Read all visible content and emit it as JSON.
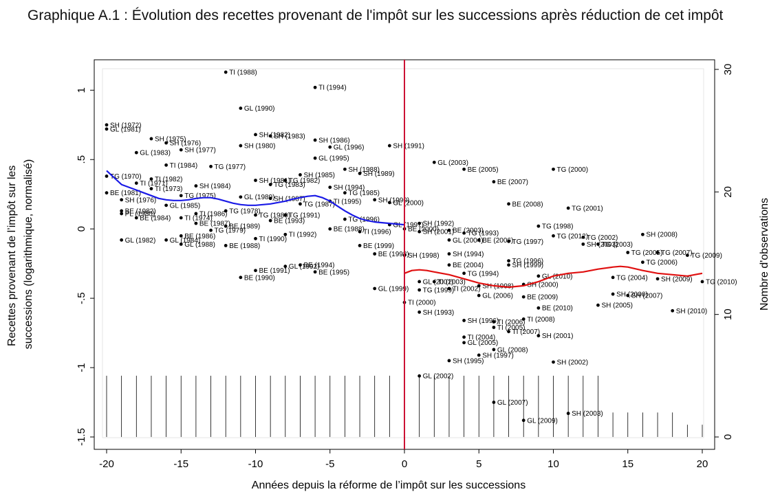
{
  "title": "Graphique A.1 : Évolution des recettes provenant de l'impôt sur les successions après réduction de cet impôt",
  "chart_data": {
    "type": "scatter",
    "xlabel": "Années depuis la réforme de l’impôt sur les successions",
    "ylabel": "Recettes provenant de l’impôt sur les successions (logarithmique, normalisé)",
    "ylabel_lines": [
      "Recettes provenant de l’impôt sur les",
      "successions (logarithmique, normalisé)"
    ],
    "y2label": "Nombre d'observations",
    "xlim": [
      -20,
      20
    ],
    "ylim": [
      -1.5,
      1.15
    ],
    "y2lim": [
      0,
      30
    ],
    "xticks": [
      -20,
      -15,
      -10,
      -5,
      0,
      5,
      10,
      15,
      20
    ],
    "xtick_labels": [
      "-20",
      "-15",
      "-10",
      "-5",
      "0",
      "5",
      "10",
      "15",
      "20"
    ],
    "yticks": [
      -1.5,
      -1,
      -0.5,
      0,
      0.5,
      1
    ],
    "ytick_labels": [
      "-1.5",
      "-1",
      "-.5",
      "0",
      ".5",
      "1"
    ],
    "y2ticks": [
      0,
      10,
      20,
      30
    ],
    "y2tick_labels": [
      "0",
      "10",
      "20",
      "30"
    ],
    "reform_line_x": 0,
    "reform_line_color": "#cc1133",
    "points": [
      {
        "x": -12,
        "y": 1.13,
        "label": "TI (1988)"
      },
      {
        "x": -6,
        "y": 1.02,
        "label": "TI (1994)"
      },
      {
        "x": -11,
        "y": 0.87,
        "label": "GL (1990)"
      },
      {
        "x": -20,
        "y": 0.75,
        "label": "SH (1972)"
      },
      {
        "x": -20,
        "y": 0.72,
        "label": "GL (1981)"
      },
      {
        "x": -17,
        "y": 0.65,
        "label": "SH (1975)"
      },
      {
        "x": -16,
        "y": 0.62,
        "label": "SH (1976)"
      },
      {
        "x": -10,
        "y": 0.68,
        "label": "SH (1982)"
      },
      {
        "x": -9,
        "y": 0.67,
        "label": "SH (1983)"
      },
      {
        "x": -6,
        "y": 0.64,
        "label": "SH (1986)"
      },
      {
        "x": -11,
        "y": 0.6,
        "label": "SH (1980)"
      },
      {
        "x": -5,
        "y": 0.59,
        "label": "GL (1996)"
      },
      {
        "x": -1,
        "y": 0.6,
        "label": "SH (1991)"
      },
      {
        "x": -15,
        "y": 0.57,
        "label": "SH (1977)"
      },
      {
        "x": -18,
        "y": 0.55,
        "label": "GL (1983)"
      },
      {
        "x": -6,
        "y": 0.51,
        "label": "GL (1995)"
      },
      {
        "x": 2,
        "y": 0.48,
        "label": "GL (2003)"
      },
      {
        "x": -16,
        "y": 0.46,
        "label": "TI (1984)"
      },
      {
        "x": -13,
        "y": 0.45,
        "label": "TG (1977)"
      },
      {
        "x": 4,
        "y": 0.43,
        "label": "BE (2005)"
      },
      {
        "x": 10,
        "y": 0.43,
        "label": "TG (2000)"
      },
      {
        "x": -4,
        "y": 0.43,
        "label": "SH (1988)"
      },
      {
        "x": -3,
        "y": 0.4,
        "label": "SH (1989)"
      },
      {
        "x": -20,
        "y": 0.38,
        "label": "TG (1970)"
      },
      {
        "x": -7,
        "y": 0.39,
        "label": "SH (1985)"
      },
      {
        "x": -17,
        "y": 0.36,
        "label": "TI (1982)"
      },
      {
        "x": -10,
        "y": 0.35,
        "label": "SH (1981)"
      },
      {
        "x": -8,
        "y": 0.35,
        "label": "TG (1982)"
      },
      {
        "x": 6,
        "y": 0.34,
        "label": "BE (2007)"
      },
      {
        "x": -18,
        "y": 0.33,
        "label": "TI (1971)"
      },
      {
        "x": -14,
        "y": 0.31,
        "label": "SH (1984)"
      },
      {
        "x": -9,
        "y": 0.32,
        "label": "TG (1983)"
      },
      {
        "x": -17,
        "y": 0.29,
        "label": "TI (1973)"
      },
      {
        "x": -5,
        "y": 0.3,
        "label": "SH (1994)"
      },
      {
        "x": -20,
        "y": 0.26,
        "label": "BE (1981)"
      },
      {
        "x": -4,
        "y": 0.26,
        "label": "TG (1985)"
      },
      {
        "x": -15,
        "y": 0.24,
        "label": "TG (1975)"
      },
      {
        "x": -11,
        "y": 0.23,
        "label": "GL (1989)"
      },
      {
        "x": -9,
        "y": 0.22,
        "label": "SH (1987)"
      },
      {
        "x": -19,
        "y": 0.21,
        "label": "SH (1976)"
      },
      {
        "x": -2,
        "y": 0.21,
        "label": "SH (1990)"
      },
      {
        "x": -1,
        "y": 0.19,
        "label": "GL (2000)"
      },
      {
        "x": 7,
        "y": 0.18,
        "label": "BE (2008)"
      },
      {
        "x": -7,
        "y": 0.18,
        "label": "TG (1987)"
      },
      {
        "x": -5,
        "y": 0.2,
        "label": "TI (1995)"
      },
      {
        "x": -16,
        "y": 0.17,
        "label": "GL (1985)"
      },
      {
        "x": 11,
        "y": 0.15,
        "label": "TG (2001)"
      },
      {
        "x": -12,
        "y": 0.13,
        "label": "TG (1978)"
      },
      {
        "x": -19,
        "y": 0.13,
        "label": "BE (1982)"
      },
      {
        "x": -14,
        "y": 0.11,
        "label": "TI (1986)"
      },
      {
        "x": -19,
        "y": 0.11,
        "label": "PL (1980)"
      },
      {
        "x": -10,
        "y": 0.1,
        "label": "TG (1980)"
      },
      {
        "x": -8,
        "y": 0.1,
        "label": "TG (1991)"
      },
      {
        "x": -18,
        "y": 0.08,
        "label": "BE (1984)"
      },
      {
        "x": -15,
        "y": 0.08,
        "label": "TI (1974)"
      },
      {
        "x": -4,
        "y": 0.07,
        "label": "TG (1996)"
      },
      {
        "x": -9,
        "y": 0.06,
        "label": "BE (1993)"
      },
      {
        "x": -14,
        "y": 0.04,
        "label": "BE (1987)"
      },
      {
        "x": 1,
        "y": 0.04,
        "label": "SH (1992)"
      },
      {
        "x": -12,
        "y": 0.02,
        "label": "BE (1989)"
      },
      {
        "x": -1,
        "y": 0.03,
        "label": "GL (1997)"
      },
      {
        "x": 9,
        "y": 0.02,
        "label": "TG (1998)"
      },
      {
        "x": -13,
        "y": -0.01,
        "label": "TG (1979)"
      },
      {
        "x": 0,
        "y": 0.0,
        "label": "BE (2000)"
      },
      {
        "x": -5,
        "y": 0.0,
        "label": "BE (1988)"
      },
      {
        "x": 3,
        "y": -0.01,
        "label": "BE (2003)"
      },
      {
        "x": -3,
        "y": -0.02,
        "label": "TI (1996)"
      },
      {
        "x": 4,
        "y": -0.03,
        "label": "TG (1993)"
      },
      {
        "x": 1,
        "y": -0.02,
        "label": "SH (2001)"
      },
      {
        "x": -8,
        "y": -0.04,
        "label": "TI (1992)"
      },
      {
        "x": -15,
        "y": -0.05,
        "label": "BE (1986)"
      },
      {
        "x": 10,
        "y": -0.05,
        "label": "TG (2012)"
      },
      {
        "x": 12,
        "y": -0.06,
        "label": "TG (2002)"
      },
      {
        "x": 16,
        "y": -0.04,
        "label": "SH (2008)"
      },
      {
        "x": -10,
        "y": -0.07,
        "label": "TI (1990)"
      },
      {
        "x": -19,
        "y": -0.08,
        "label": "GL (1982)"
      },
      {
        "x": -16,
        "y": -0.08,
        "label": "GL (1984)"
      },
      {
        "x": 3,
        "y": -0.08,
        "label": "GL (2004)"
      },
      {
        "x": 5,
        "y": -0.08,
        "label": "BE (2006)"
      },
      {
        "x": 7,
        "y": -0.09,
        "label": "TG (1997)"
      },
      {
        "x": -15,
        "y": -0.11,
        "label": "GL (1988)"
      },
      {
        "x": -12,
        "y": -0.12,
        "label": "BE (1988)"
      },
      {
        "x": -3,
        "y": -0.12,
        "label": "BE (1999)"
      },
      {
        "x": 12,
        "y": -0.11,
        "label": "SH (2003)"
      },
      {
        "x": 13,
        "y": -0.11,
        "label": "TG (2003)"
      },
      {
        "x": -2,
        "y": -0.18,
        "label": "BE (1998)"
      },
      {
        "x": 0,
        "y": -0.19,
        "label": "SH (1998)"
      },
      {
        "x": 3,
        "y": -0.18,
        "label": "SH (1994)"
      },
      {
        "x": 15,
        "y": -0.17,
        "label": "TG (2005)"
      },
      {
        "x": 17,
        "y": -0.17,
        "label": "TG (2007)"
      },
      {
        "x": 19,
        "y": -0.19,
        "label": "TG (2009)"
      },
      {
        "x": 7,
        "y": -0.23,
        "label": "TG (1996)"
      },
      {
        "x": 16,
        "y": -0.24,
        "label": "TG (2006)"
      },
      {
        "x": 3,
        "y": -0.26,
        "label": "BE (2004)"
      },
      {
        "x": 7,
        "y": -0.26,
        "label": "SH (1999)"
      },
      {
        "x": -8,
        "y": -0.27,
        "label": "GL (1992)"
      },
      {
        "x": -7,
        "y": -0.26,
        "label": "BE (1994)"
      },
      {
        "x": -10,
        "y": -0.3,
        "label": "BE (1991)"
      },
      {
        "x": -6,
        "y": -0.31,
        "label": "BE (1995)"
      },
      {
        "x": 4,
        "y": -0.32,
        "label": "TG (1994)"
      },
      {
        "x": 9,
        "y": -0.34,
        "label": "GL (2010)"
      },
      {
        "x": 14,
        "y": -0.35,
        "label": "TG (2004)"
      },
      {
        "x": 17,
        "y": -0.36,
        "label": "SH (2009)"
      },
      {
        "x": 20,
        "y": -0.38,
        "label": "TG (2010)"
      },
      {
        "x": -11,
        "y": -0.35,
        "label": "BE (1990)"
      },
      {
        "x": 1,
        "y": -0.38,
        "label": "GL (2001)"
      },
      {
        "x": 2,
        "y": -0.38,
        "label": "TI (2003)"
      },
      {
        "x": 5,
        "y": -0.41,
        "label": "SH (1998)"
      },
      {
        "x": 8,
        "y": -0.4,
        "label": "SH (2000)"
      },
      {
        "x": -2,
        "y": -0.43,
        "label": "GL (1999)"
      },
      {
        "x": 1,
        "y": -0.44,
        "label": "TG (1999)"
      },
      {
        "x": 3,
        "y": -0.43,
        "label": "TI (2002)"
      },
      {
        "x": 5,
        "y": -0.48,
        "label": "GL (2006)"
      },
      {
        "x": 8,
        "y": -0.49,
        "label": "BE (2009)"
      },
      {
        "x": 14,
        "y": -0.47,
        "label": "SH (2006)"
      },
      {
        "x": 15,
        "y": -0.48,
        "label": "SH (2007)"
      },
      {
        "x": 0,
        "y": -0.53,
        "label": "TI (2000)"
      },
      {
        "x": 13,
        "y": -0.55,
        "label": "SH (2005)"
      },
      {
        "x": 9,
        "y": -0.57,
        "label": "BE (2010)"
      },
      {
        "x": 1,
        "y": -0.6,
        "label": "SH (1993)"
      },
      {
        "x": 18,
        "y": -0.59,
        "label": "SH (2010)"
      },
      {
        "x": 4,
        "y": -0.66,
        "label": "SH (1996)"
      },
      {
        "x": 6,
        "y": -0.67,
        "label": "TI (2006)"
      },
      {
        "x": 8,
        "y": -0.65,
        "label": "TI (2008)"
      },
      {
        "x": 6,
        "y": -0.71,
        "label": "TI (2005)"
      },
      {
        "x": 7,
        "y": -0.74,
        "label": "TI (2007)"
      },
      {
        "x": 4,
        "y": -0.78,
        "label": "TI (2004)"
      },
      {
        "x": 9,
        "y": -0.77,
        "label": "SH (2001)"
      },
      {
        "x": 4,
        "y": -0.82,
        "label": "GL (2005)"
      },
      {
        "x": 6,
        "y": -0.87,
        "label": "GL (2008)"
      },
      {
        "x": 5,
        "y": -0.91,
        "label": "SH (1997)"
      },
      {
        "x": 3,
        "y": -0.95,
        "label": "SH (1995)"
      },
      {
        "x": 10,
        "y": -0.96,
        "label": "SH (2002)"
      },
      {
        "x": 1,
        "y": -1.06,
        "label": "GL (2002)"
      },
      {
        "x": 6,
        "y": -1.25,
        "label": "GL (2007)"
      },
      {
        "x": 11,
        "y": -1.33,
        "label": "SH (2003)"
      },
      {
        "x": 8,
        "y": -1.38,
        "label": "GL (2009)"
      }
    ],
    "trend_before": {
      "name": "",
      "color": "#1a1ae6",
      "x": [
        -20,
        -19.5,
        -19,
        -18.5,
        -18,
        -17.5,
        -17,
        -16.5,
        -16,
        -15.5,
        -15,
        -14.5,
        -14,
        -13.5,
        -13,
        -12.5,
        -12,
        -11.5,
        -11,
        -10.5,
        -10,
        -9.5,
        -9,
        -8.5,
        -8,
        -7.5,
        -7,
        -6.5,
        -6,
        -5.5,
        -5,
        -4.5,
        -4,
        -3.5,
        -3,
        -2.5,
        -2,
        -1.5,
        -1,
        -0.5,
        0
      ],
      "y": [
        0.42,
        0.37,
        0.32,
        0.3,
        0.28,
        0.26,
        0.24,
        0.22,
        0.21,
        0.205,
        0.205,
        0.21,
        0.22,
        0.225,
        0.225,
        0.215,
        0.2,
        0.185,
        0.175,
        0.17,
        0.17,
        0.175,
        0.18,
        0.19,
        0.2,
        0.215,
        0.225,
        0.235,
        0.24,
        0.225,
        0.2,
        0.165,
        0.13,
        0.1,
        0.075,
        0.06,
        0.05,
        0.045,
        0.04,
        0.035,
        0.03
      ]
    },
    "trend_after": {
      "name": "",
      "color": "#e01010",
      "x": [
        0,
        0.5,
        1,
        1.5,
        2,
        3,
        4,
        5,
        6,
        7,
        8,
        9,
        10,
        11,
        12,
        13,
        14,
        14.5,
        15,
        16,
        17,
        18,
        19,
        20
      ],
      "y": [
        -0.32,
        -0.3,
        -0.295,
        -0.3,
        -0.31,
        -0.33,
        -0.36,
        -0.39,
        -0.41,
        -0.42,
        -0.41,
        -0.38,
        -0.34,
        -0.32,
        -0.31,
        -0.29,
        -0.275,
        -0.27,
        -0.275,
        -0.3,
        -0.32,
        -0.33,
        -0.34,
        -0.32
      ]
    },
    "observations": {
      "x": [
        -20,
        -19,
        -18,
        -17,
        -16,
        -15,
        -14,
        -13,
        -12,
        -11,
        -10,
        -9,
        -8,
        -7,
        -6,
        -5,
        -4,
        -3,
        -2,
        -1,
        0,
        1,
        2,
        3,
        4,
        5,
        6,
        7,
        8,
        9,
        10,
        11,
        12,
        13,
        14,
        15,
        16,
        17,
        18,
        19,
        20
      ],
      "counts": [
        5,
        5,
        5,
        5,
        5,
        5,
        5,
        5,
        5,
        5,
        5,
        5,
        5,
        5,
        5,
        5,
        5,
        5,
        5,
        5,
        5,
        5,
        5,
        5,
        5,
        5,
        5,
        5,
        5,
        5,
        5,
        5,
        5,
        5,
        2,
        2,
        2,
        2,
        2,
        1,
        1
      ]
    }
  }
}
